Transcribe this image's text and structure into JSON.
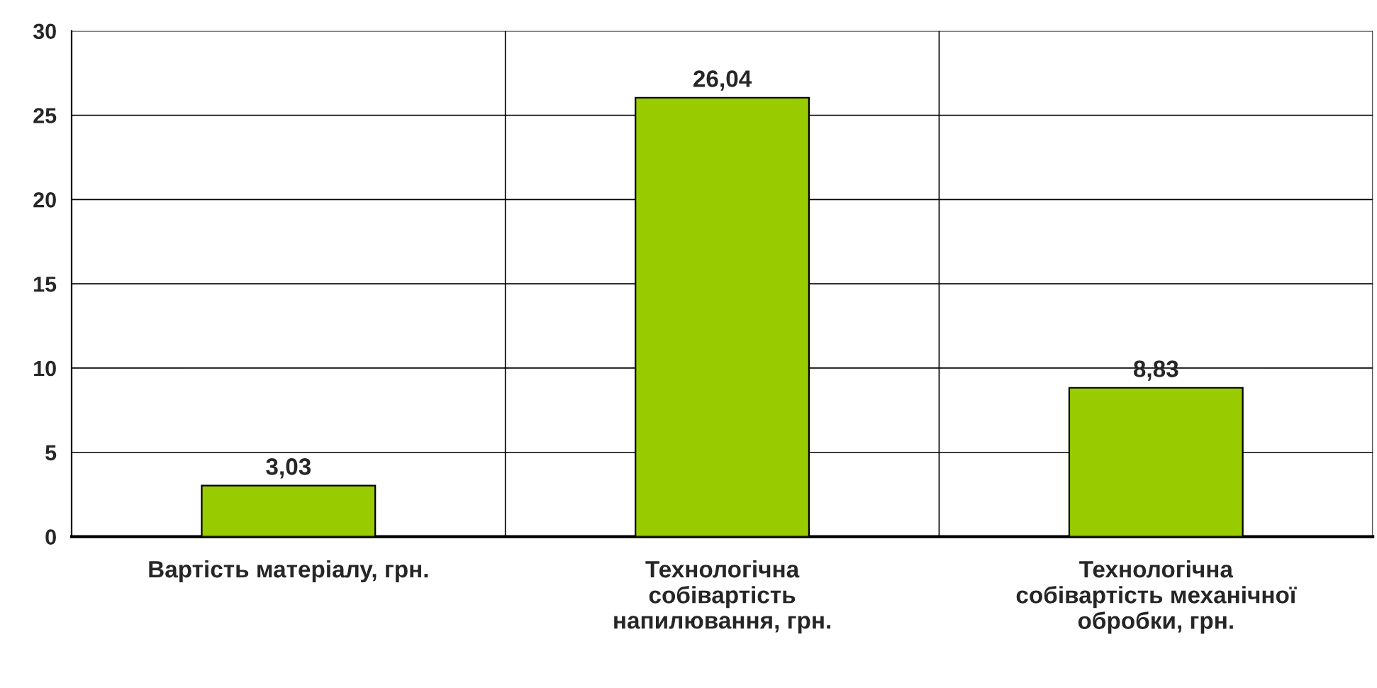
{
  "chart_data": {
    "type": "bar",
    "categories": [
      "Вартість матеріалу, грн.",
      "Технологічна\nсобівартість\nнапилювання, грн.",
      "Технологічна\nсобівартість механічної\nобробки, грн."
    ],
    "values": [
      3.03,
      26.04,
      8.83
    ],
    "value_labels": [
      "3,03",
      "26,04",
      "8,83"
    ],
    "color": "#99cc00",
    "ylim": [
      0,
      30
    ],
    "yticks": [
      0,
      5,
      10,
      15,
      20,
      25,
      30
    ],
    "grid": true,
    "legend": false
  }
}
